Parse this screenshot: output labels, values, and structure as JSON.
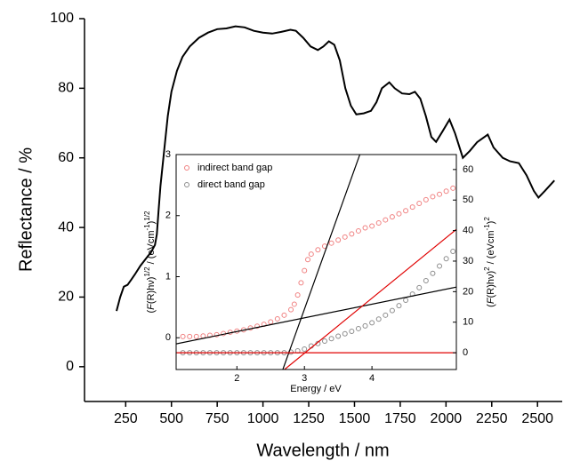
{
  "chart_data": [
    {
      "type": "line",
      "x_label": "Wavelength / nm",
      "y_label": "Reflectance / %",
      "color": "#000000",
      "xlim": [
        25,
        2635
      ],
      "xticks": [
        250,
        500,
        750,
        1000,
        1250,
        1500,
        1750,
        2000,
        2250,
        2500
      ],
      "ylim": [
        -10,
        100
      ],
      "yticks": [
        0,
        20,
        40,
        60,
        80,
        100
      ],
      "x": [
        200,
        220,
        240,
        260,
        280,
        300,
        330,
        360,
        390,
        410,
        420,
        430,
        440,
        460,
        480,
        500,
        530,
        560,
        600,
        650,
        700,
        750,
        800,
        850,
        900,
        950,
        1000,
        1050,
        1100,
        1150,
        1180,
        1220,
        1260,
        1300,
        1330,
        1360,
        1390,
        1420,
        1450,
        1480,
        1510,
        1550,
        1590,
        1620,
        1650,
        1690,
        1720,
        1760,
        1800,
        1830,
        1860,
        1890,
        1920,
        1946,
        1980,
        2019,
        2050,
        2092,
        2130,
        2170,
        2228,
        2260,
        2310,
        2350,
        2398,
        2440,
        2480,
        2505,
        2540,
        2592
      ],
      "values": [
        16,
        20,
        23,
        23.5,
        25,
        26.5,
        29,
        31,
        33,
        35,
        38,
        45,
        52,
        62,
        72,
        79,
        85,
        89,
        92,
        94.5,
        96,
        97,
        97.2,
        97.8,
        97.5,
        96.5,
        96,
        95.7,
        96.2,
        96.8,
        96.5,
        94.5,
        92,
        91,
        92,
        93.5,
        92.5,
        88,
        80,
        75,
        72.5,
        72.8,
        73.5,
        76,
        80,
        81.7,
        80,
        78.5,
        78.3,
        79,
        77,
        72,
        66,
        64.6,
        67.5,
        71,
        67,
        60,
        62,
        64.5,
        66.7,
        63,
        60,
        59,
        58.5,
        55,
        50.5,
        48.6,
        50.5,
        53.5
      ]
    },
    {
      "type": "scatter",
      "x_label": "Energy / eV",
      "y_label": [
        "(",
        "F",
        "(R)hν)",
        "1/2",
        " / (eVcm",
        "-1",
        ")",
        "1/2"
      ],
      "y2_label": [
        "(",
        "F",
        "(R)hν)",
        "2",
        " / (eVcm",
        "-1",
        ")",
        "2"
      ],
      "xlim": [
        1.1,
        5.25
      ],
      "xticks": [
        2,
        3,
        4
      ],
      "ylim": [
        -0.52,
        3
      ],
      "yticks": [
        0,
        1,
        2,
        3
      ],
      "y2lim": [
        -5.5,
        64.9
      ],
      "y2ticks": [
        0,
        10,
        20,
        30,
        40,
        50,
        60
      ],
      "legend": "upper left",
      "series": [
        {
          "name": "indirect band gap",
          "color": "#f08080",
          "axis": "y",
          "x": [
            1.2,
            1.3,
            1.4,
            1.5,
            1.6,
            1.7,
            1.8,
            1.9,
            2.0,
            2.1,
            2.2,
            2.3,
            2.4,
            2.5,
            2.6,
            2.7,
            2.8,
            2.85,
            2.9,
            2.95,
            3.0,
            3.05,
            3.1,
            3.2,
            3.3,
            3.4,
            3.5,
            3.6,
            3.7,
            3.8,
            3.9,
            4.0,
            4.1,
            4.2,
            4.3,
            4.4,
            4.5,
            4.6,
            4.7,
            4.8,
            4.9,
            5.0,
            5.1,
            5.2
          ],
          "values": [
            0.02,
            0.02,
            0.02,
            0.03,
            0.04,
            0.05,
            0.07,
            0.09,
            0.11,
            0.13,
            0.16,
            0.19,
            0.22,
            0.26,
            0.31,
            0.37,
            0.46,
            0.55,
            0.7,
            0.9,
            1.1,
            1.28,
            1.37,
            1.44,
            1.5,
            1.55,
            1.6,
            1.65,
            1.7,
            1.75,
            1.8,
            1.83,
            1.88,
            1.93,
            1.98,
            2.03,
            2.08,
            2.14,
            2.2,
            2.26,
            2.31,
            2.35,
            2.4,
            2.45
          ]
        },
        {
          "name": "direct band gap",
          "color": "#8c8c8c",
          "axis": "y2",
          "x": [
            1.2,
            1.3,
            1.4,
            1.5,
            1.6,
            1.7,
            1.8,
            1.9,
            2.0,
            2.1,
            2.2,
            2.3,
            2.4,
            2.5,
            2.6,
            2.7,
            2.8,
            2.9,
            3.0,
            3.1,
            3.2,
            3.3,
            3.4,
            3.5,
            3.6,
            3.7,
            3.8,
            3.9,
            4.0,
            4.1,
            4.2,
            4.3,
            4.4,
            4.5,
            4.6,
            4.7,
            4.8,
            4.9,
            5.0,
            5.1,
            5.2
          ],
          "values": [
            0,
            0,
            0,
            0,
            0,
            0,
            0,
            0,
            0,
            0,
            0,
            0,
            0,
            0,
            0,
            0,
            0.2,
            0.6,
            1.2,
            2.2,
            3.0,
            3.8,
            4.6,
            5.4,
            6.2,
            7.0,
            7.9,
            8.8,
            9.8,
            11,
            12.3,
            13.8,
            15.4,
            17.2,
            19.2,
            21.3,
            23.6,
            26,
            28.4,
            30.8,
            33.2
          ]
        }
      ],
      "lines": [
        {
          "color": "#000000",
          "axis": "y",
          "x": [
            2.68,
            3.82
          ],
          "y": [
            -0.52,
            3
          ]
        },
        {
          "color": "#000000",
          "axis": "y",
          "x": [
            1.1,
            5.25
          ],
          "y": [
            -0.1,
            0.83
          ]
        },
        {
          "color": "#e00000",
          "axis": "y2",
          "x": [
            2.705,
            5.25
          ],
          "y": [
            -5.5,
            40.4
          ]
        },
        {
          "color": "#e00000",
          "axis": "y2",
          "x": [
            1.1,
            5.25
          ],
          "y": [
            0,
            0
          ]
        }
      ]
    }
  ]
}
